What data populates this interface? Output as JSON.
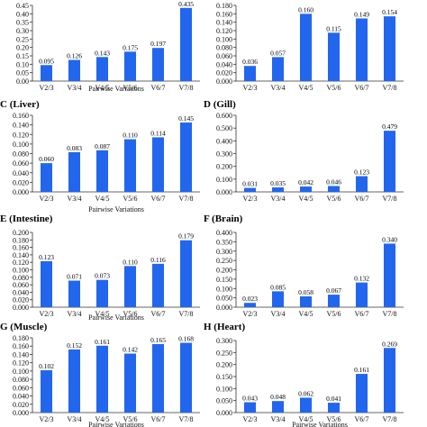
{
  "bar_color": "#2266ee",
  "axis_color": "#333333",
  "chart_data": [
    {
      "type": "bar",
      "title": "",
      "categories": [
        "V2/3",
        "V3/4",
        "V4/5",
        "V5/6",
        "V6/7",
        "V7/8"
      ],
      "values": [
        0.095,
        0.126,
        0.143,
        0.175,
        0.197,
        0.435
      ],
      "labels": [
        "0.095",
        "0.126",
        "0.143",
        "0.175",
        "0.197",
        "0.435"
      ],
      "yticks": [
        "0.00",
        "0.05",
        "0.10",
        "0.15",
        "0.20",
        "0.25",
        "0.30",
        "0.35",
        "0.40",
        "0.45"
      ],
      "ylim": [
        0,
        0.45
      ],
      "xlabel": "Pairwise Variations"
    },
    {
      "type": "bar",
      "title": "",
      "categories": [
        "V2/3",
        "V3/4",
        "V4/5",
        "V5/6",
        "V6/7",
        "V7/8"
      ],
      "values": [
        0.036,
        0.057,
        0.16,
        0.115,
        0.149,
        0.154
      ],
      "labels": [
        "0.036",
        "0.057",
        "0.160",
        "0.115",
        "0.149",
        "0.154"
      ],
      "yticks": [
        "0.000",
        "0.020",
        "0.040",
        "0.060",
        "0.080",
        "0.100",
        "0.120",
        "0.140",
        "0.160",
        "0.180"
      ],
      "ylim": [
        0,
        0.18
      ],
      "xlabel": ""
    },
    {
      "type": "bar",
      "title": "C (Liver)",
      "categories": [
        "V2/3",
        "V3/4",
        "V4/5",
        "V5/6",
        "V6/7",
        "V7/8"
      ],
      "values": [
        0.06,
        0.083,
        0.087,
        0.11,
        0.114,
        0.145
      ],
      "labels": [
        "0.060",
        "0.083",
        "0.087",
        "0.110",
        "0.114",
        "0.145"
      ],
      "yticks": [
        "0.000",
        "0.020",
        "0.040",
        "0.060",
        "0.080",
        "0.100",
        "0.120",
        "0.140",
        "0.160"
      ],
      "ylim": [
        0,
        0.16
      ],
      "xlabel": "Pairwise Variations"
    },
    {
      "type": "bar",
      "title": "D (Gill)",
      "categories": [
        "V2/3",
        "V3/4",
        "V4/5",
        "V5/6",
        "V6/7",
        "V7/8"
      ],
      "values": [
        0.031,
        0.035,
        0.042,
        0.046,
        0.123,
        0.479
      ],
      "labels": [
        "0.031",
        "0.035",
        "0.042",
        "0.046",
        "0.123",
        "0.479"
      ],
      "yticks": [
        "0.000",
        "0.100",
        "0.200",
        "0.300",
        "0.400",
        "0.500",
        "0.600"
      ],
      "ylim": [
        0,
        0.6
      ],
      "xlabel": ""
    },
    {
      "type": "bar",
      "title": "E (Intestine)",
      "categories": [
        "V2/3",
        "V3/4",
        "V4/5",
        "V5/6",
        "V6/7",
        "V7/8"
      ],
      "values": [
        0.123,
        0.071,
        0.073,
        0.11,
        0.116,
        0.179
      ],
      "labels": [
        "0.123",
        "0.071",
        "0.073",
        "0.110",
        "0.116",
        "0.179"
      ],
      "yticks": [
        "0.000",
        "0.020",
        "0.040",
        "0.060",
        "0.080",
        "0.100",
        "0.120",
        "0.140",
        "0.160",
        "0.180",
        "0.200"
      ],
      "ylim": [
        0,
        0.2
      ],
      "xlabel": "Pairwise Variations"
    },
    {
      "type": "bar",
      "title": "F (Brain)",
      "categories": [
        "V2/3",
        "V3/4",
        "V4/5",
        "V5/6",
        "V6/7",
        "V7/8"
      ],
      "values": [
        0.023,
        0.085,
        0.058,
        0.067,
        0.132,
        0.34
      ],
      "labels": [
        "0.023",
        "0.085",
        "0.058",
        "0.067",
        "0.132",
        "0.340"
      ],
      "yticks": [
        "0.000",
        "0.050",
        "0.100",
        "0.150",
        "0.200",
        "0.250",
        "0.300",
        "0.350",
        "0.400"
      ],
      "ylim": [
        0,
        0.4
      ],
      "xlabel": ""
    },
    {
      "type": "bar",
      "title": "G (Muscle)",
      "categories": [
        "V2/3",
        "V3/4",
        "V4/5",
        "V5/6",
        "V6/7",
        "V7/8"
      ],
      "values": [
        0.102,
        0.152,
        0.161,
        0.142,
        0.165,
        0.168
      ],
      "labels": [
        "0.102",
        "0.152",
        "0.161",
        "0.142",
        "0.165",
        "0.168"
      ],
      "yticks": [
        "0.000",
        "0.020",
        "0.040",
        "0.060",
        "0.080",
        "0.100",
        "0.120",
        "0.140",
        "0.160",
        "0.180"
      ],
      "ylim": [
        0,
        0.18
      ],
      "xlabel": "Pairwise Variations"
    },
    {
      "type": "bar",
      "title": "H (Heart)",
      "categories": [
        "V2/3",
        "V3/4",
        "V4/5",
        "V5/6",
        "V6/7",
        "V7/8"
      ],
      "values": [
        0.043,
        0.048,
        0.062,
        0.041,
        0.161,
        0.269
      ],
      "labels": [
        "0.043",
        "0.048",
        "0.062",
        "0.041",
        "0.161",
        "0.269"
      ],
      "yticks": [
        "0.000",
        "0.050",
        "0.100",
        "0.150",
        "0.200",
        "0.250",
        "0.300"
      ],
      "ylim": [
        0,
        0.3
      ],
      "xlabel": "Pairwise Variations"
    }
  ]
}
